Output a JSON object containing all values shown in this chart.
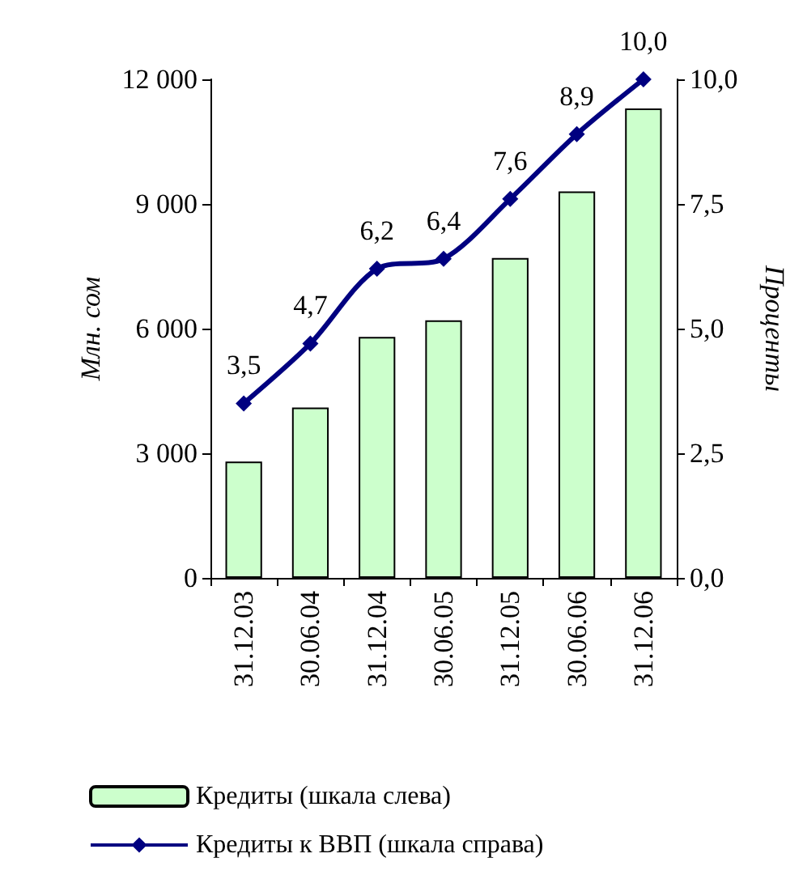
{
  "chart_data": {
    "type": "bar",
    "ylabel": "Млн. сом",
    "y2label": "Проценты",
    "categories": [
      "31.12.03",
      "30.06.04",
      "31.12.04",
      "30.06.05",
      "31.12.05",
      "30.06.06",
      "31.12.06"
    ],
    "series": [
      {
        "name": "Кредиты (шкала слева)",
        "color": "#ccffcc",
        "values": [
          2800,
          4100,
          5800,
          6200,
          7700,
          9300,
          11300
        ]
      },
      {
        "name": "Кредиты к ВВП (шкала справа)",
        "type": "line",
        "axis": "y2",
        "color": "#000080",
        "marker": "diamond",
        "values": [
          3.5,
          4.7,
          6.2,
          6.4,
          7.6,
          8.9,
          10.0
        ],
        "value_labels": [
          "3,5",
          "4,7",
          "6,2",
          "6,4",
          "7,6",
          "8,9",
          "10,0"
        ]
      }
    ],
    "ylim": [
      0,
      12000
    ],
    "yticks": [
      {
        "value": 0,
        "label": "0"
      },
      {
        "value": 3000,
        "label": "3 000"
      },
      {
        "value": 6000,
        "label": "6 000"
      },
      {
        "value": 9000,
        "label": "9 000"
      },
      {
        "value": 12000,
        "label": "12 000"
      }
    ],
    "y2lim": [
      0,
      10
    ],
    "y2ticks": [
      {
        "value": 0,
        "label": "0,0"
      },
      {
        "value": 2.5,
        "label": "2,5"
      },
      {
        "value": 5,
        "label": "5,0"
      },
      {
        "value": 7.5,
        "label": "7,5"
      },
      {
        "value": 10,
        "label": "10,0"
      }
    ],
    "grid": false,
    "legend": "bottom"
  }
}
